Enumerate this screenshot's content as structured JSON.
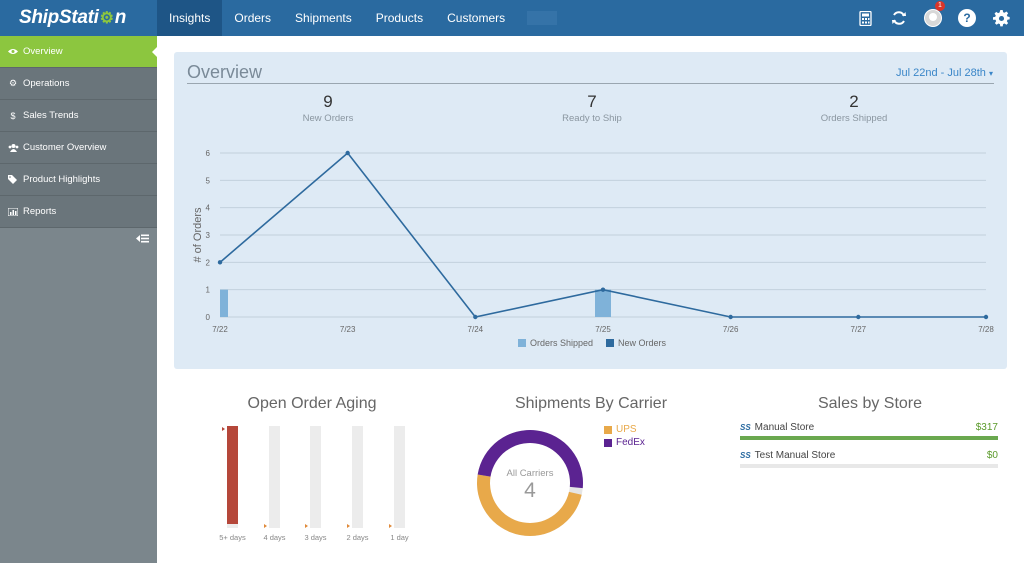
{
  "brand": {
    "name_part1": "ShipStati",
    "name_part2": "n"
  },
  "nav": {
    "items": [
      "Insights",
      "Orders",
      "Shipments",
      "Products",
      "Customers"
    ],
    "active": 0
  },
  "top_icons": {
    "badge_count": "1",
    "help_label": "?"
  },
  "sidebar": {
    "items": [
      {
        "label": "Overview",
        "icon": "eye-icon",
        "active": true
      },
      {
        "label": "Operations",
        "icon": "cogs-icon"
      },
      {
        "label": "Sales Trends",
        "icon": "dollar-icon"
      },
      {
        "label": "Customer Overview",
        "icon": "users-icon"
      },
      {
        "label": "Product Highlights",
        "icon": "tags-icon"
      },
      {
        "label": "Reports",
        "icon": "bar-chart-icon"
      }
    ]
  },
  "overview": {
    "title": "Overview",
    "date_range": "Jul 22nd - Jul 28th",
    "stats": [
      {
        "value": "9",
        "label": "New Orders"
      },
      {
        "value": "7",
        "label": "Ready to Ship"
      },
      {
        "value": "2",
        "label": "Orders Shipped"
      }
    ]
  },
  "chart_data": [
    {
      "type": "line",
      "ylabel": "# of Orders",
      "categories": [
        "7/22",
        "7/23",
        "7/24",
        "7/25",
        "7/26",
        "7/27",
        "7/28"
      ],
      "ylim": [
        0,
        6
      ],
      "yticks": [
        0,
        1,
        2,
        3,
        4,
        5,
        6
      ],
      "series": [
        {
          "name": "Orders Shipped",
          "kind": "bar",
          "color": "#7fb2d9",
          "values": [
            1,
            0,
            0,
            1,
            0,
            0,
            0
          ]
        },
        {
          "name": "New Orders",
          "kind": "line",
          "color": "#2e6a9e",
          "values": [
            2,
            6,
            0,
            1,
            0,
            0,
            0
          ]
        }
      ],
      "legend": "bottom-center",
      "grid": true
    },
    {
      "type": "pie",
      "title": "Shipments By Carrier",
      "center_label": "All Carriers",
      "center_value": "4",
      "series": [
        {
          "name": "UPS",
          "color": "#e8a94a",
          "value": 2
        },
        {
          "name": "FedEx",
          "color": "#5b2391",
          "value": 2
        }
      ]
    },
    {
      "type": "bar",
      "title": "Open Order Aging",
      "categories": [
        "5+ days",
        "4 days",
        "3 days",
        "2 days",
        "1 day"
      ],
      "values": [
        1,
        0,
        0,
        0,
        0
      ],
      "color": "#b5473a"
    }
  ],
  "sales_by_store": {
    "title": "Sales by Store",
    "logo": "SS",
    "stores": [
      {
        "name": "Manual Store",
        "amount": "$317",
        "share": 1.0
      },
      {
        "name": "Test Manual Store",
        "amount": "$0",
        "share": 0.0
      }
    ]
  }
}
